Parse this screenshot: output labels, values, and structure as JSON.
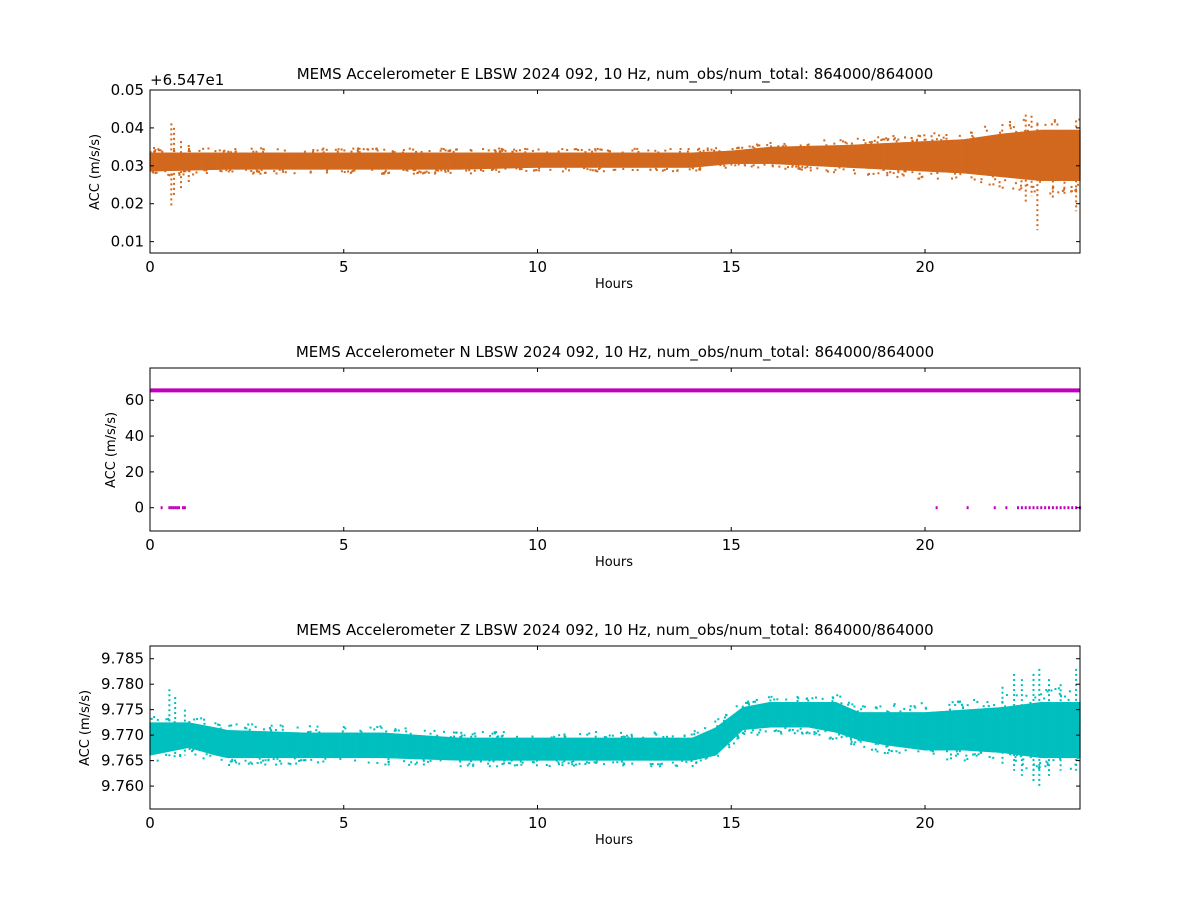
{
  "chart_data": [
    {
      "type": "scatter",
      "title": "MEMS Accelerometer E LBSW 2024 092, 10 Hz, num_obs/num_total: 864000/864000",
      "xlabel": "Hours",
      "ylabel": "ACC (m/s/s)",
      "offset_text": "+6.547e1",
      "offset_value": 65.47,
      "xlim": [
        0,
        24
      ],
      "ylim": [
        0.007,
        0.05
      ],
      "xticks": [
        0,
        5,
        10,
        15,
        20
      ],
      "yticks": [
        0.01,
        0.02,
        0.03,
        0.04,
        0.05
      ],
      "ytick_labels": [
        "0.01",
        "0.02",
        "0.03",
        "0.04",
        "0.05"
      ],
      "color": "#d2691e",
      "grid": false,
      "band": {
        "hours": [
          0,
          2,
          4,
          6,
          8,
          10,
          12,
          14,
          15,
          16,
          18,
          20,
          21,
          22,
          23,
          24
        ],
        "low": [
          0.0285,
          0.029,
          0.029,
          0.029,
          0.029,
          0.0295,
          0.0295,
          0.0295,
          0.0305,
          0.0305,
          0.0295,
          0.0285,
          0.028,
          0.027,
          0.026,
          0.026
        ],
        "high": [
          0.0335,
          0.0335,
          0.0335,
          0.0335,
          0.0335,
          0.0335,
          0.0335,
          0.0335,
          0.034,
          0.035,
          0.0355,
          0.0365,
          0.037,
          0.0385,
          0.0395,
          0.0395
        ]
      },
      "spikes": [
        {
          "hour": 0.55,
          "low": 0.0195,
          "high": 0.0412
        },
        {
          "hour": 0.62,
          "low": 0.022,
          "high": 0.04
        },
        {
          "hour": 0.8,
          "low": 0.024,
          "high": 0.0365
        },
        {
          "hour": 1.0,
          "low": 0.025,
          "high": 0.0355
        },
        {
          "hour": 22.6,
          "low": 0.0205,
          "high": 0.0435
        },
        {
          "hour": 22.75,
          "low": 0.022,
          "high": 0.0432
        },
        {
          "hour": 22.9,
          "low": 0.013,
          "high": 0.041
        },
        {
          "hour": 23.3,
          "low": 0.021,
          "high": 0.038
        },
        {
          "hour": 23.6,
          "low": 0.022,
          "high": 0.039
        },
        {
          "hour": 23.9,
          "low": 0.018,
          "high": 0.042
        }
      ]
    },
    {
      "type": "scatter",
      "title": "MEMS Accelerometer N LBSW 2024 092, 10 Hz, num_obs/num_total: 864000/864000",
      "xlabel": "Hours",
      "ylabel": "ACC (m/s/s)",
      "xlim": [
        0,
        24
      ],
      "ylim": [
        -13,
        78
      ],
      "xticks": [
        0,
        5,
        10,
        15,
        20
      ],
      "yticks": [
        0,
        20,
        40,
        60
      ],
      "ytick_labels": [
        "0",
        "20",
        "40",
        "60"
      ],
      "color": "#bf00bf",
      "grid": false,
      "main_level": 65.5,
      "zero_points_hours": [
        0.3,
        0.5,
        0.55,
        0.6,
        0.65,
        0.7,
        0.75,
        0.85,
        0.9,
        20.3,
        21.1,
        21.8,
        22.1,
        22.4,
        22.5,
        22.6,
        22.7,
        22.8,
        22.9,
        23.0,
        23.1,
        23.2,
        23.3,
        23.4,
        23.5,
        23.6,
        23.7,
        23.8,
        23.9,
        24.0
      ]
    },
    {
      "type": "scatter",
      "title": "MEMS Accelerometer Z LBSW 2024 092, 10 Hz, num_obs/num_total: 864000/864000",
      "xlabel": "Hours",
      "ylabel": "ACC (m/s/s)",
      "xlim": [
        0,
        24
      ],
      "ylim": [
        9.7555,
        9.7875
      ],
      "xticks": [
        0,
        5,
        10,
        15,
        20
      ],
      "yticks": [
        9.76,
        9.765,
        9.77,
        9.775,
        9.78,
        9.785
      ],
      "ytick_labels": [
        "9.760",
        "9.765",
        "9.770",
        "9.775",
        "9.780",
        "9.785"
      ],
      "color": "#00bfbf",
      "grid": false,
      "band": {
        "hours": [
          0,
          1,
          1.7,
          2,
          4,
          6,
          8,
          10,
          12,
          14,
          14.6,
          15.3,
          16,
          17,
          17.7,
          18.3,
          19,
          20,
          21,
          22,
          23,
          24
        ],
        "low": [
          9.766,
          9.7675,
          9.766,
          9.7655,
          9.7655,
          9.7655,
          9.765,
          9.765,
          9.765,
          9.765,
          9.766,
          9.771,
          9.7715,
          9.7715,
          9.7705,
          9.769,
          9.768,
          9.767,
          9.767,
          9.7665,
          9.7655,
          9.7655
        ],
        "high": [
          9.7725,
          9.7725,
          9.7715,
          9.771,
          9.7705,
          9.7705,
          9.7695,
          9.7695,
          9.7695,
          9.7695,
          9.7715,
          9.7755,
          9.7765,
          9.7765,
          9.7765,
          9.7745,
          9.7745,
          9.7745,
          9.775,
          9.7755,
          9.7765,
          9.7765
        ]
      },
      "spikes": [
        {
          "hour": 0.5,
          "low": 9.7655,
          "high": 9.779
        },
        {
          "hour": 0.65,
          "low": 9.766,
          "high": 9.7775
        },
        {
          "hour": 0.9,
          "low": 9.766,
          "high": 9.775
        },
        {
          "hour": 22.0,
          "low": 9.764,
          "high": 9.7795
        },
        {
          "hour": 22.3,
          "low": 9.763,
          "high": 9.782
        },
        {
          "hour": 22.5,
          "low": 9.762,
          "high": 9.781
        },
        {
          "hour": 22.8,
          "low": 9.761,
          "high": 9.782
        },
        {
          "hour": 22.95,
          "low": 9.76,
          "high": 9.783
        },
        {
          "hour": 23.2,
          "low": 9.762,
          "high": 9.781
        },
        {
          "hour": 23.5,
          "low": 9.763,
          "high": 9.78
        },
        {
          "hour": 23.9,
          "low": 9.763,
          "high": 9.783
        }
      ]
    }
  ]
}
